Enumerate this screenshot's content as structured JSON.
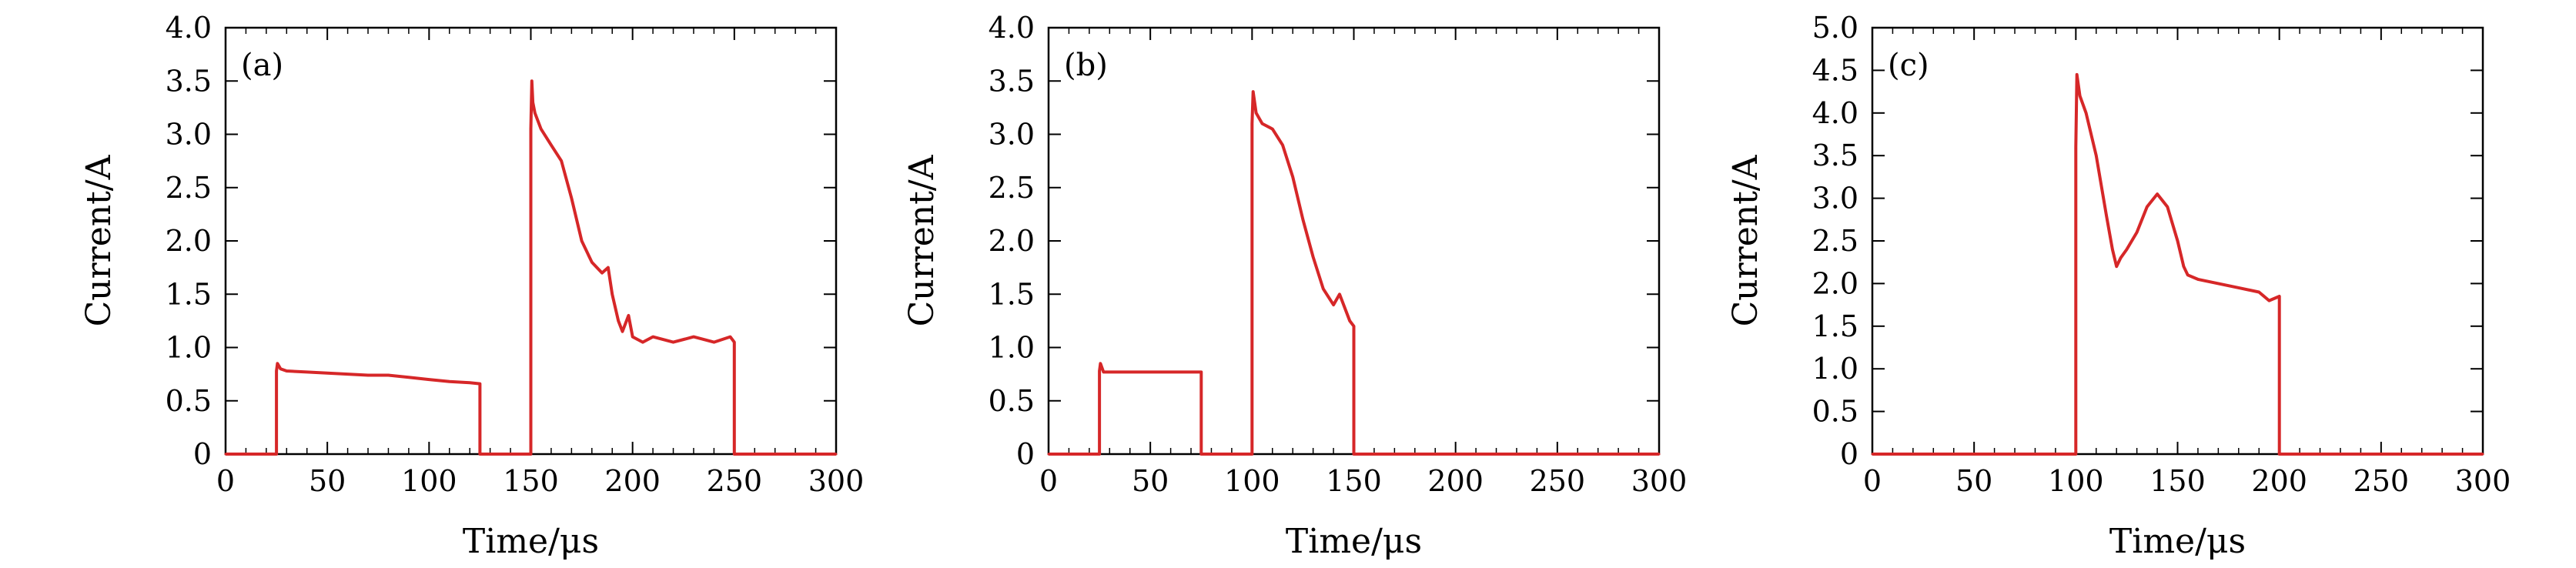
{
  "chart_data": [
    {
      "type": "line",
      "panel_label": "(a)",
      "xlabel": "Time/μs",
      "ylabel": "Current/A",
      "xlim": [
        0,
        300
      ],
      "ylim": [
        0,
        4.0
      ],
      "xticks": [
        "0",
        "50",
        "100",
        "150",
        "200",
        "250",
        "300"
      ],
      "yticks": [
        "0",
        "0.5",
        "1.0",
        "1.5",
        "2.0",
        "2.5",
        "3.0",
        "3.5",
        "4.0"
      ],
      "color": "#d62728",
      "series": [
        {
          "x": [
            0,
            25,
            25,
            25.5,
            27,
            30,
            40,
            50,
            60,
            70,
            80,
            90,
            100,
            110,
            120,
            125,
            125,
            150,
            150,
            150.5,
            151,
            152,
            155,
            160,
            165,
            170,
            175,
            180,
            185,
            188,
            190,
            193,
            195,
            198,
            200,
            205,
            210,
            220,
            230,
            240,
            248,
            250,
            250,
            300
          ],
          "y": [
            0,
            0,
            0.78,
            0.85,
            0.8,
            0.78,
            0.77,
            0.76,
            0.75,
            0.74,
            0.74,
            0.72,
            0.7,
            0.68,
            0.67,
            0.66,
            0,
            0,
            3.05,
            3.5,
            3.3,
            3.2,
            3.05,
            2.9,
            2.75,
            2.4,
            2.0,
            1.8,
            1.7,
            1.75,
            1.5,
            1.25,
            1.15,
            1.3,
            1.1,
            1.05,
            1.1,
            1.05,
            1.1,
            1.05,
            1.1,
            1.05,
            0,
            0
          ]
        }
      ]
    },
    {
      "type": "line",
      "panel_label": "(b)",
      "xlabel": "Time/μs",
      "ylabel": "Current/A",
      "xlim": [
        0,
        300
      ],
      "ylim": [
        0,
        4.0
      ],
      "xticks": [
        "0",
        "50",
        "100",
        "150",
        "200",
        "250",
        "300"
      ],
      "yticks": [
        "0",
        "0.5",
        "1.0",
        "1.5",
        "2.0",
        "2.5",
        "3.0",
        "3.5",
        "4.0"
      ],
      "color": "#d62728",
      "series": [
        {
          "x": [
            0,
            25,
            25,
            25.5,
            27,
            35,
            45,
            55,
            65,
            75,
            75,
            100,
            100,
            100.5,
            102,
            105,
            110,
            115,
            120,
            125,
            130,
            135,
            140,
            143,
            146,
            148,
            150,
            150,
            300
          ],
          "y": [
            0,
            0,
            0.78,
            0.85,
            0.77,
            0.77,
            0.77,
            0.77,
            0.77,
            0.77,
            0,
            0,
            3.1,
            3.4,
            3.2,
            3.1,
            3.05,
            2.9,
            2.6,
            2.2,
            1.85,
            1.55,
            1.4,
            1.5,
            1.35,
            1.25,
            1.2,
            0,
            0
          ]
        }
      ]
    },
    {
      "type": "line",
      "panel_label": "(c)",
      "xlabel": "Time/μs",
      "ylabel": "Current/A",
      "xlim": [
        0,
        300
      ],
      "ylim": [
        0,
        5.0
      ],
      "xticks": [
        "0",
        "50",
        "100",
        "150",
        "200",
        "250",
        "300"
      ],
      "yticks": [
        "0",
        "0.5",
        "1.0",
        "1.5",
        "2.0",
        "2.5",
        "3.0",
        "3.5",
        "4.0",
        "4.5",
        "5.0"
      ],
      "color": "#d62728",
      "series": [
        {
          "x": [
            0,
            100,
            100,
            100.5,
            102,
            105,
            110,
            115,
            118,
            120,
            122,
            125,
            130,
            135,
            140,
            145,
            150,
            153,
            155,
            160,
            170,
            180,
            190,
            195,
            200,
            200,
            300
          ],
          "y": [
            0,
            0,
            3.6,
            4.45,
            4.2,
            4.0,
            3.5,
            2.8,
            2.4,
            2.2,
            2.3,
            2.4,
            2.6,
            2.9,
            3.05,
            2.9,
            2.5,
            2.2,
            2.1,
            2.05,
            2.0,
            1.95,
            1.9,
            1.8,
            1.85,
            0,
            0
          ]
        }
      ]
    }
  ]
}
